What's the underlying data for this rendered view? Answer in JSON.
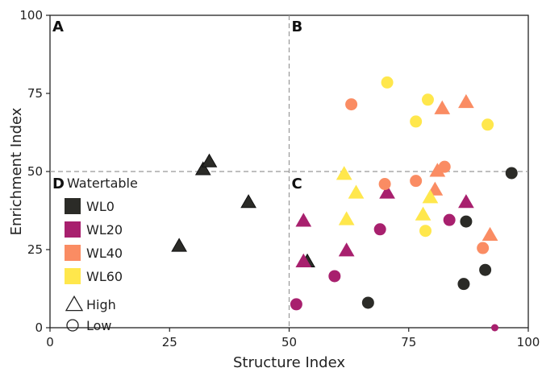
{
  "chart_data": {
    "type": "scatter",
    "xlabel": "Structure Index",
    "ylabel": "Enrichment Index",
    "xlim": [
      0,
      100
    ],
    "ylim": [
      0,
      100
    ],
    "x_ticks": [
      "0",
      "25",
      "50",
      "75",
      "100"
    ],
    "y_ticks": [
      "0",
      "25",
      "50",
      "75",
      "100"
    ],
    "reference_lines": {
      "x": 50,
      "y": 50
    },
    "grid": false,
    "quadrant_labels": [
      {
        "label": "A",
        "position": "top-left"
      },
      {
        "label": "B",
        "position": "top-right"
      },
      {
        "label": "C",
        "position": "bottom-right"
      },
      {
        "label": "D",
        "position": "bottom-left"
      }
    ],
    "legend": {
      "title": "Watertable",
      "placement": "left",
      "shape_entries": [
        {
          "label": "High",
          "shape": "triangle"
        },
        {
          "label": "Low",
          "shape": "circle"
        }
      ]
    },
    "series": [
      {
        "name": "WL0",
        "color": "#2b2b27",
        "points": [
          {
            "x": 27,
            "y": 26,
            "shape": "triangle"
          },
          {
            "x": 32,
            "y": 50.5,
            "shape": "triangle"
          },
          {
            "x": 33.3,
            "y": 53,
            "shape": "triangle"
          },
          {
            "x": 41.5,
            "y": 40,
            "shape": "triangle"
          },
          {
            "x": 53.8,
            "y": 21,
            "shape": "triangle"
          },
          {
            "x": 66.5,
            "y": 8,
            "shape": "circle"
          },
          {
            "x": 86.5,
            "y": 14,
            "shape": "circle"
          },
          {
            "x": 87,
            "y": 34,
            "shape": "circle"
          },
          {
            "x": 91,
            "y": 18.5,
            "shape": "circle"
          },
          {
            "x": 96.5,
            "y": 49.5,
            "shape": "circle"
          }
        ]
      },
      {
        "name": "WL20",
        "color": "#a8206e",
        "points": [
          {
            "x": 51.5,
            "y": 7.5,
            "shape": "circle"
          },
          {
            "x": 53,
            "y": 34,
            "shape": "triangle"
          },
          {
            "x": 53,
            "y": 21,
            "shape": "triangle"
          },
          {
            "x": 59.5,
            "y": 16.5,
            "shape": "circle"
          },
          {
            "x": 62,
            "y": 24.5,
            "shape": "triangle"
          },
          {
            "x": 69,
            "y": 31.5,
            "shape": "circle"
          },
          {
            "x": 70.5,
            "y": 43,
            "shape": "triangle"
          },
          {
            "x": 83.5,
            "y": 34.5,
            "shape": "circle"
          },
          {
            "x": 87,
            "y": 40,
            "shape": "triangle"
          },
          {
            "x": 93,
            "y": 0,
            "shape": "circle",
            "small": true
          }
        ]
      },
      {
        "name": "WL40",
        "color": "#fa8c63",
        "points": [
          {
            "x": 63,
            "y": 71.5,
            "shape": "circle"
          },
          {
            "x": 70,
            "y": 46,
            "shape": "circle"
          },
          {
            "x": 76.5,
            "y": 47,
            "shape": "circle"
          },
          {
            "x": 80.5,
            "y": 44,
            "shape": "triangle"
          },
          {
            "x": 81,
            "y": 50,
            "shape": "triangle"
          },
          {
            "x": 82.5,
            "y": 51.5,
            "shape": "circle"
          },
          {
            "x": 82,
            "y": 70,
            "shape": "triangle"
          },
          {
            "x": 87,
            "y": 72,
            "shape": "triangle"
          },
          {
            "x": 90.5,
            "y": 25.5,
            "shape": "circle"
          },
          {
            "x": 92,
            "y": 29.5,
            "shape": "triangle"
          }
        ]
      },
      {
        "name": "WL60",
        "color": "#ffe74c",
        "points": [
          {
            "x": 61.5,
            "y": 49,
            "shape": "triangle"
          },
          {
            "x": 62,
            "y": 34.5,
            "shape": "triangle"
          },
          {
            "x": 64,
            "y": 43,
            "shape": "triangle"
          },
          {
            "x": 70.5,
            "y": 78.5,
            "shape": "circle"
          },
          {
            "x": 76.5,
            "y": 66,
            "shape": "circle"
          },
          {
            "x": 78,
            "y": 36,
            "shape": "triangle"
          },
          {
            "x": 78.5,
            "y": 31,
            "shape": "circle"
          },
          {
            "x": 79,
            "y": 73,
            "shape": "circle"
          },
          {
            "x": 79.5,
            "y": 41.5,
            "shape": "triangle"
          },
          {
            "x": 91.5,
            "y": 65,
            "shape": "circle"
          }
        ]
      }
    ]
  }
}
